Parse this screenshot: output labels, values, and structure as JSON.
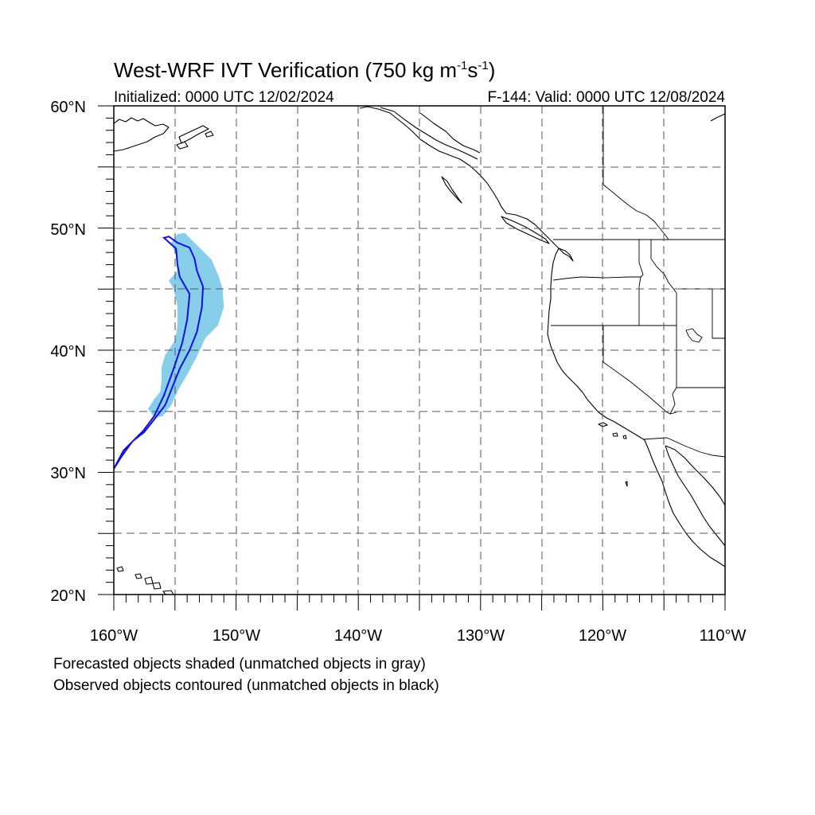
{
  "title": {
    "text": "West-WRF IVT Verification (750 kg m",
    "sup1": "-1",
    "mid": "s",
    "sup2": "-1",
    "end": ")"
  },
  "initialized": "Initialized: 0000 UTC 12/02/2024",
  "valid": "F-144: Valid: 0000 UTC 12/08/2024",
  "lat_labels": [
    "60°N",
    "50°N",
    "40°N",
    "30°N",
    "20°N"
  ],
  "lon_labels": [
    "160°W",
    "150°W",
    "140°W",
    "130°W",
    "120°W",
    "110°W"
  ],
  "extent": {
    "lon_min": -160,
    "lon_max": -110,
    "lat_min": 20,
    "lat_max": 60
  },
  "legend": {
    "forecast": "Forecasted objects shaded (unmatched objects in gray)",
    "observed": "Observed objects contoured (unmatched objects in black)"
  },
  "colors": {
    "forecast_fill": "#87ceeb",
    "observed_contour": "#1010e0",
    "grid": "#555555",
    "coast": "#000000"
  },
  "forecast_object": {
    "matched": true,
    "outline_latlon": [
      [
        49.5,
        -154.8
      ],
      [
        49.6,
        -154.2
      ],
      [
        48.7,
        -153.3
      ],
      [
        47.4,
        -152.0
      ],
      [
        46.0,
        -151.4
      ],
      [
        45.0,
        -151.1
      ],
      [
        43.5,
        -151.0
      ],
      [
        42.0,
        -151.5
      ],
      [
        41.0,
        -152.5
      ],
      [
        39.5,
        -153.2
      ],
      [
        38.0,
        -154.0
      ],
      [
        36.8,
        -154.7
      ],
      [
        35.5,
        -155.3
      ],
      [
        34.6,
        -156.0
      ],
      [
        34.5,
        -156.7
      ],
      [
        35.2,
        -157.2
      ],
      [
        36.0,
        -156.7
      ],
      [
        36.6,
        -156.2
      ],
      [
        37.5,
        -156.1
      ],
      [
        38.6,
        -156.1
      ],
      [
        39.6,
        -155.8
      ],
      [
        40.8,
        -155.0
      ],
      [
        42.0,
        -154.8
      ],
      [
        43.6,
        -154.8
      ],
      [
        45.0,
        -155.1
      ],
      [
        45.7,
        -155.5
      ],
      [
        46.5,
        -154.8
      ],
      [
        47.8,
        -154.9
      ],
      [
        48.8,
        -155.3
      ],
      [
        49.5,
        -154.8
      ]
    ]
  },
  "observed_object": {
    "matched": true,
    "outline_latlon": [
      [
        49.2,
        -155.9
      ],
      [
        49.3,
        -155.5
      ],
      [
        48.8,
        -154.8
      ],
      [
        48.4,
        -153.8
      ],
      [
        47.5,
        -153.4
      ],
      [
        46.5,
        -153.2
      ],
      [
        45.2,
        -152.7
      ],
      [
        43.5,
        -152.8
      ],
      [
        41.5,
        -153.2
      ],
      [
        40.0,
        -153.8
      ],
      [
        38.5,
        -154.6
      ],
      [
        37.0,
        -155.2
      ],
      [
        35.5,
        -155.8
      ],
      [
        34.2,
        -156.8
      ],
      [
        33.3,
        -157.5
      ],
      [
        32.6,
        -158.4
      ],
      [
        31.8,
        -159.2
      ],
      [
        30.3,
        -160.0
      ],
      [
        31.4,
        -159.3
      ],
      [
        32.5,
        -158.5
      ],
      [
        33.4,
        -157.6
      ],
      [
        34.6,
        -156.7
      ],
      [
        36.3,
        -155.9
      ],
      [
        38.5,
        -155.1
      ],
      [
        40.6,
        -154.4
      ],
      [
        42.5,
        -154.0
      ],
      [
        44.6,
        -153.8
      ],
      [
        46.0,
        -154.6
      ],
      [
        47.0,
        -154.8
      ],
      [
        48.3,
        -154.9
      ],
      [
        49.2,
        -155.9
      ]
    ]
  }
}
